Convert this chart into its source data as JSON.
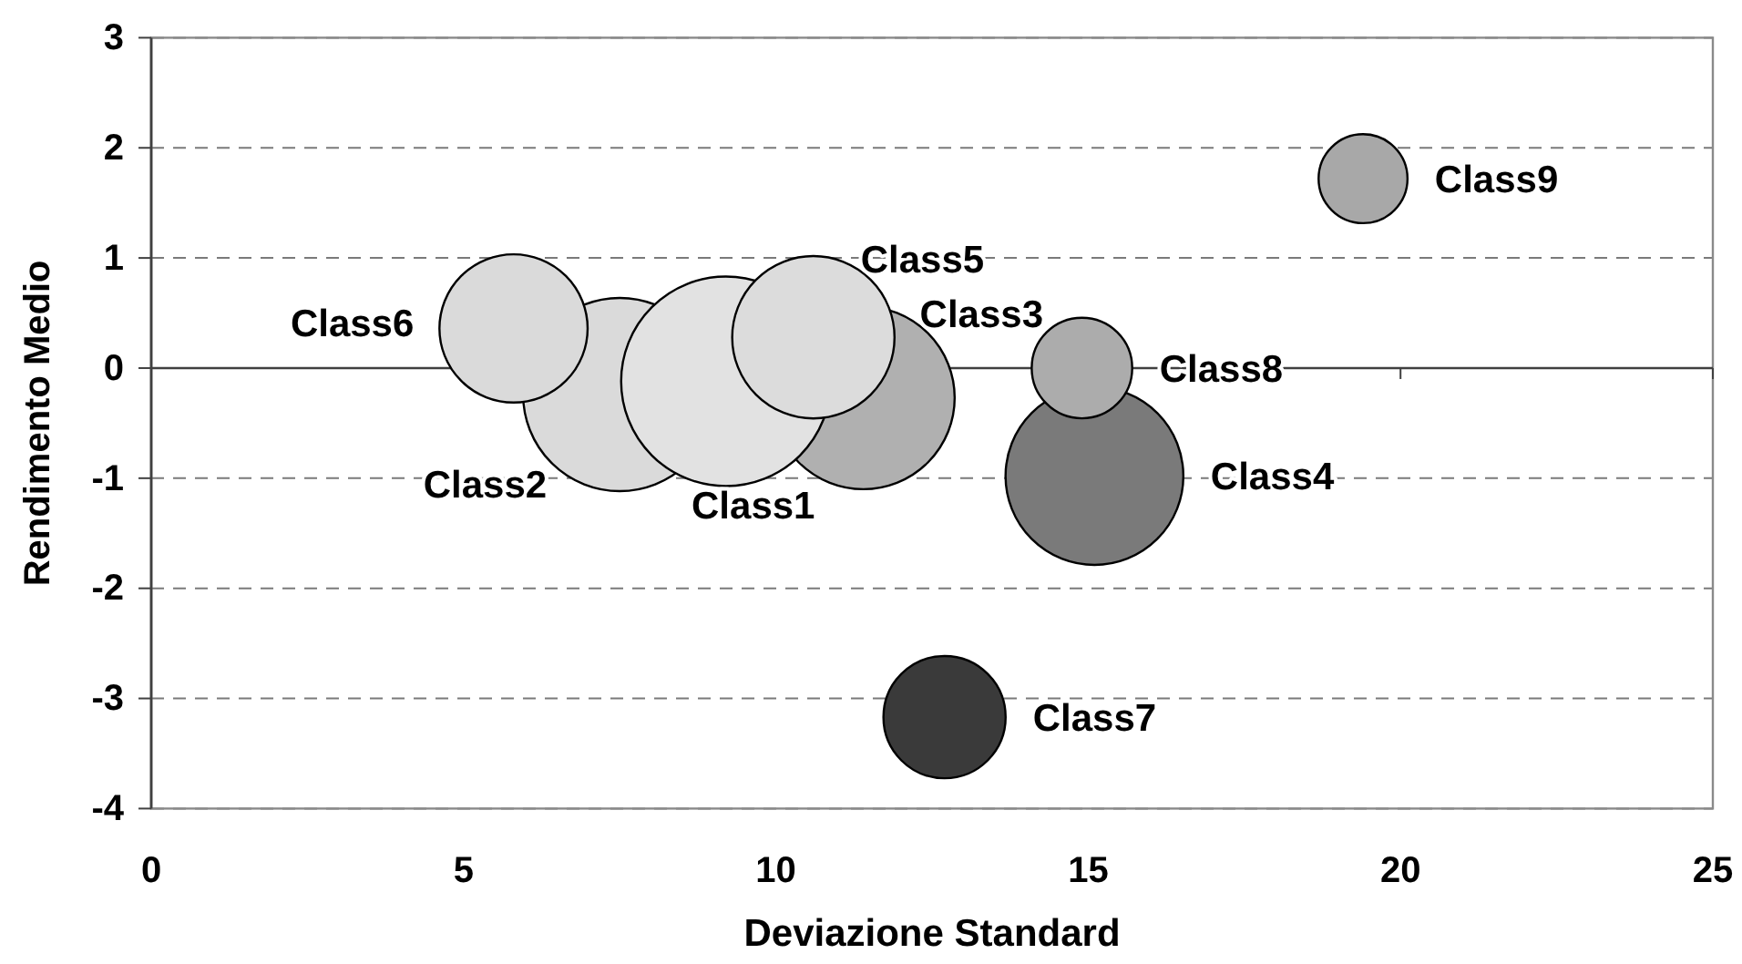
{
  "chart_data": {
    "type": "bubble",
    "xlabel": "Deviazione Standard",
    "ylabel": "Rendimento Medio",
    "xlim": [
      0,
      25
    ],
    "xticks": [
      0,
      5,
      10,
      15,
      20,
      25
    ],
    "ylim": [
      -4,
      3
    ],
    "yticks": [
      -4,
      -3,
      -2,
      -1,
      0,
      1,
      2,
      3
    ],
    "grid": "y",
    "series": [
      {
        "name": "Class2",
        "color": "#dadada",
        "x": [
          7.5
        ],
        "values": [
          -0.24
        ],
        "sizes": [
          0.85
        ]
      },
      {
        "name": "Class3",
        "color": "#b0b0b0",
        "x": [
          11.4
        ],
        "values": [
          -0.27
        ],
        "sizes": [
          0.76
        ]
      },
      {
        "name": "Class1",
        "color": "#e2e2e2",
        "x": [
          9.2
        ],
        "values": [
          -0.12
        ],
        "sizes": [
          1
        ]
      },
      {
        "name": "Class4",
        "color": "#7a7a7a",
        "x": [
          15.1
        ],
        "values": [
          -0.98
        ],
        "sizes": [
          0.72
        ]
      },
      {
        "name": "Class5",
        "color": "#dcdcdc",
        "x": [
          10.6
        ],
        "values": [
          0.28
        ],
        "sizes": [
          0.6
        ]
      },
      {
        "name": "Class6",
        "color": "#dadada",
        "x": [
          5.8
        ],
        "values": [
          0.36
        ],
        "sizes": [
          0.5
        ]
      },
      {
        "name": "Class7",
        "color": "#3a3a3a",
        "x": [
          12.7
        ],
        "values": [
          -3.17
        ],
        "sizes": [
          0.34
        ]
      },
      {
        "name": "Class8",
        "color": "#acacac",
        "x": [
          14.9
        ],
        "values": [
          0
        ],
        "sizes": [
          0.23
        ]
      },
      {
        "name": "Class9",
        "color": "#a8a8a8",
        "x": [
          19.4
        ],
        "values": [
          1.72
        ],
        "sizes": [
          0.18
        ]
      }
    ]
  }
}
